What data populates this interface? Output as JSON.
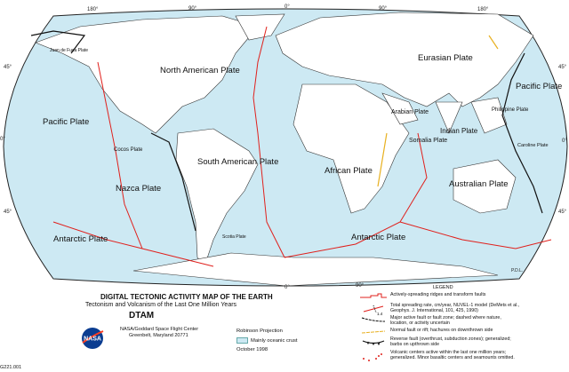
{
  "title": "DIGITAL TECTONIC ACTIVITY MAP OF THE EARTH",
  "subtitle": "Tectonism and Volcanism of the Last One Million Years",
  "acronym": "DTAM",
  "organization": "NASA/Goddard Space Flight Center",
  "address": "Greenbelt, Maryland 20771",
  "logo_text": "NASA",
  "projection": "Robinson Projection",
  "ocean_key": "Mainly oceanic crust",
  "date": "October 1998",
  "figure_code": "G221.001",
  "signature": "P.D.L.",
  "colors": {
    "ocean": "#cde9f3",
    "land": "#ffffff",
    "ridge": "#e0201c",
    "rift": "#e8b020",
    "fault": "#111111",
    "volcano": "#e0201c"
  },
  "graticule": {
    "top": [
      "180°",
      "90°",
      "0°",
      "90°",
      "180°"
    ],
    "left": [
      "45°",
      "0°",
      "45°"
    ],
    "right": [
      "45°",
      "0°",
      "45°"
    ],
    "bottom": [
      "0°",
      "90°"
    ]
  },
  "plates": [
    "Eurasian Plate",
    "North American Plate",
    "Pacific Plate",
    "Pacific Plate",
    "Juan de Fuca Plate",
    "Cocos Plate",
    "Nazca Plate",
    "South American Plate",
    "African Plate",
    "Arabian Plate",
    "Somalia Plate",
    "Indian Plate",
    "Philippine Plate",
    "Caroline Plate",
    "Australian Plate",
    "Antarctic Plate",
    "Antarctic Plate",
    "Scotia Plate"
  ],
  "legend": {
    "heading": "LEGEND",
    "items": [
      {
        "icon": "ridge-line",
        "text": "Actively-spreading ridges and transform faults"
      },
      {
        "icon": "spreading-rate",
        "sample": "1.4",
        "text": "Total spreading rate, cm/year, NUVEL-1 model (DeMets et al., Geophys. J. International, 101, 425, 1990)"
      },
      {
        "icon": "fault-line",
        "text": "Major active fault or fault zone; dashed where nature, location, or activity uncertain"
      },
      {
        "icon": "rift-line",
        "text": "Normal fault or rift; hachures on downthrown side"
      },
      {
        "icon": "reverse-fault",
        "text": "Reverse fault (overthrust, subduction zones); generalized; barbs on upthrown side"
      },
      {
        "icon": "volcano-dots",
        "text": "Volcanic centers active within the last one million years; generalized. Minor basaltic centers and seamounts omitted."
      }
    ]
  }
}
